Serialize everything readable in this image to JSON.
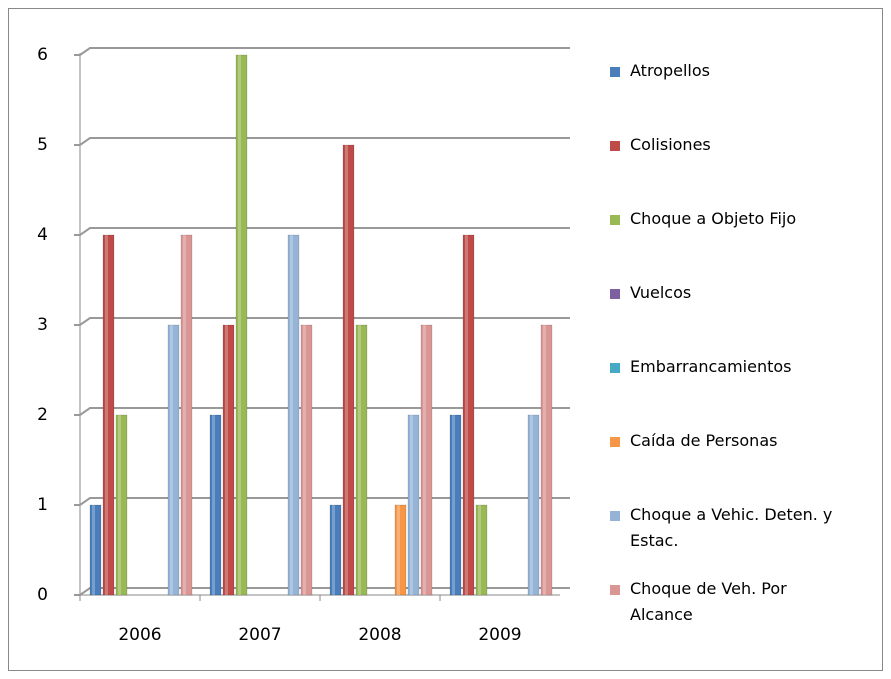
{
  "chart_data": {
    "type": "bar",
    "categories": [
      "2006",
      "2007",
      "2008",
      "2009"
    ],
    "series": [
      {
        "name": "Atropellos",
        "color": "#4a7ebb",
        "values": [
          1,
          2,
          1,
          2
        ]
      },
      {
        "name": "Colisiones",
        "color": "#be4b48",
        "values": [
          4,
          3,
          5,
          4
        ]
      },
      {
        "name": "Choque a Objeto Fijo",
        "color": "#98b954",
        "values": [
          2,
          6,
          3,
          1
        ]
      },
      {
        "name": "Vuelcos",
        "color": "#7d60a0",
        "values": [
          0,
          0,
          0,
          0
        ]
      },
      {
        "name": "Embarrancamientos",
        "color": "#46aac5",
        "values": [
          0,
          0,
          0,
          0
        ]
      },
      {
        "name": "Caída de Personas",
        "color": "#f79646",
        "values": [
          0,
          0,
          1,
          0
        ]
      },
      {
        "name": "Choque a Vehic. Deten. y Estac.",
        "color": "#95b3d7",
        "values": [
          3,
          4,
          2,
          2
        ]
      },
      {
        "name": "Choque de Veh. Por Alcance",
        "color": "#d99694",
        "values": [
          4,
          3,
          3,
          3
        ]
      }
    ],
    "ylim": [
      0,
      6
    ],
    "yticks": [
      0,
      1,
      2,
      3,
      4,
      5,
      6
    ],
    "grid": true,
    "legend": "right"
  }
}
